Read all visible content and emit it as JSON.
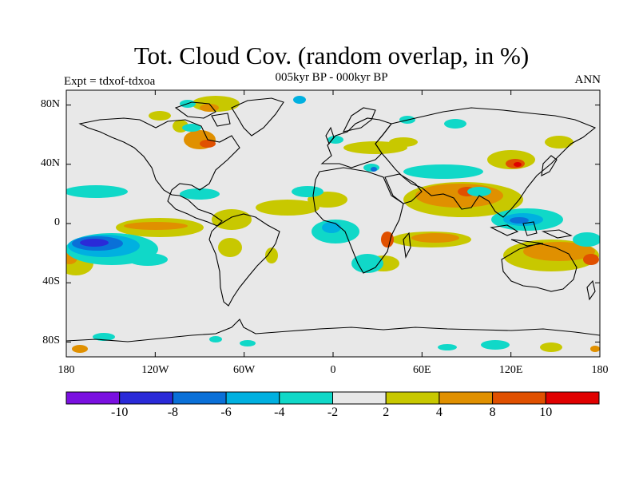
{
  "title": "Tot. Cloud Cov. (random overlap, in %)",
  "subtitle": "005kyr BP - 000kyr BP",
  "experiment_label": "Expt = tdxof-tdxoa",
  "season_label": "ANN",
  "map": {
    "projection": "cylindrical-equidistant",
    "lon_range": [
      -180,
      180
    ],
    "lat_range": [
      -90,
      90
    ],
    "background_color": "#e8e8e8",
    "coastline_color": "#000000"
  },
  "lat_ticks": [
    {
      "value": 80,
      "label": "80N"
    },
    {
      "value": 40,
      "label": "40N"
    },
    {
      "value": 0,
      "label": "0"
    },
    {
      "value": -40,
      "label": "40S"
    },
    {
      "value": -80,
      "label": "80S"
    }
  ],
  "lon_ticks": [
    {
      "value": -180,
      "label": "180"
    },
    {
      "value": -120,
      "label": "120W"
    },
    {
      "value": -60,
      "label": "60W"
    },
    {
      "value": 0,
      "label": "0"
    },
    {
      "value": 60,
      "label": "60E"
    },
    {
      "value": 120,
      "label": "120E"
    },
    {
      "value": 180,
      "label": "180"
    }
  ],
  "colorbar": {
    "colors": [
      "#7a10e0",
      "#2a2ad8",
      "#0a70d8",
      "#00b0e0",
      "#10d8c8",
      "#e8e8e8",
      "#c8c800",
      "#e09000",
      "#e05000",
      "#e00000"
    ],
    "labels": [
      "-10",
      "-8",
      "-6",
      "-4",
      "-2",
      "2",
      "4",
      "8",
      "10"
    ]
  }
}
